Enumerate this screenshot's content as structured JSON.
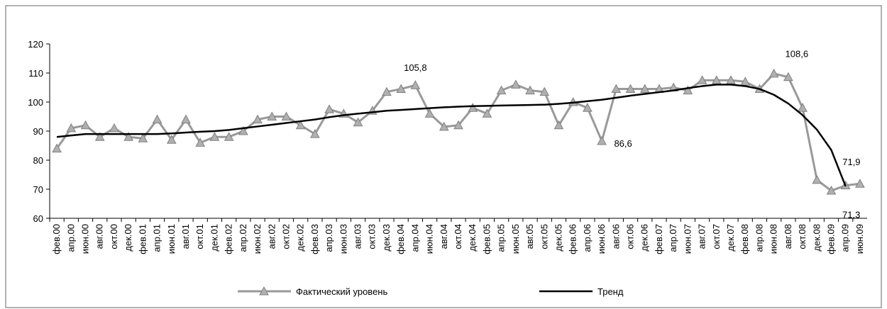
{
  "chart_data": {
    "type": "line",
    "categories": [
      "фев.00",
      "апр.00",
      "июн.00",
      "авг.00",
      "окт.00",
      "дек.00",
      "фев.01",
      "апр.01",
      "июн.01",
      "авг.01",
      "окт.01",
      "дек.01",
      "фев.02",
      "апр.02",
      "июн.02",
      "авг.02",
      "окт.02",
      "дек.02",
      "фев.03",
      "апр.03",
      "июн.03",
      "авг.03",
      "окт.03",
      "дек.03",
      "фев.04",
      "апр.04",
      "июн.04",
      "авг.04",
      "окт.04",
      "дек.04",
      "фев.05",
      "апр.05",
      "июн.05",
      "авг.05",
      "окт.05",
      "дек.05",
      "фев.06",
      "апр.06",
      "июн.06",
      "авг.06",
      "окт.06",
      "дек.06",
      "фев.07",
      "апр.07",
      "июн.07",
      "авг.07",
      "окт.07",
      "дек.07",
      "фев.08",
      "апр.08",
      "июн.08",
      "авг.08",
      "окт.08",
      "дек.08",
      "фев.09",
      "апр.09",
      "июн.09"
    ],
    "series": [
      {
        "name": "Фактический уровень",
        "color": "#999999",
        "marker": "triangle",
        "values": [
          84,
          91,
          92,
          88,
          91,
          88,
          87.5,
          94,
          87,
          94,
          86,
          88,
          88,
          90,
          94,
          95,
          95,
          92,
          89,
          97.5,
          96,
          93,
          97,
          103.5,
          104.5,
          105.8,
          96,
          91.5,
          92,
          98,
          96,
          104,
          106,
          104,
          103.5,
          92,
          100,
          98,
          86.6,
          104.5,
          104.5,
          104.5,
          104.5,
          105,
          104,
          107.5,
          107.5,
          107.5,
          107,
          104.5,
          109.8,
          108.6,
          98,
          73.2,
          69.5,
          71.3,
          71.9
        ],
        "value_labels": [
          null,
          null,
          null,
          null,
          null,
          null,
          null,
          null,
          null,
          null,
          null,
          null,
          null,
          null,
          null,
          null,
          null,
          null,
          null,
          null,
          null,
          null,
          null,
          null,
          null,
          "105,8",
          null,
          null,
          null,
          null,
          null,
          null,
          null,
          null,
          null,
          null,
          null,
          null,
          "86,6",
          null,
          null,
          null,
          null,
          null,
          null,
          null,
          null,
          null,
          null,
          null,
          null,
          "108,6",
          null,
          null,
          null,
          "71,3",
          "71,9"
        ]
      },
      {
        "name": "Тренд",
        "color": "#000000",
        "values": [
          88,
          88.5,
          89,
          89,
          89,
          89,
          89,
          89,
          89.2,
          89.5,
          89.8,
          90,
          90.4,
          91,
          91.6,
          92.2,
          92.8,
          93.4,
          94,
          94.8,
          95.5,
          96,
          96.5,
          97,
          97.3,
          97.6,
          97.9,
          98.2,
          98.4,
          98.6,
          98.7,
          98.8,
          98.9,
          99,
          99.1,
          99.4,
          99.8,
          100.3,
          100.8,
          101.5,
          102.2,
          102.8,
          103.4,
          104,
          104.8,
          105.5,
          106,
          106,
          105.5,
          104.5,
          102.5,
          99.5,
          95.5,
          90.5,
          83.5,
          71,
          null
        ]
      }
    ],
    "ylim": [
      60,
      120
    ],
    "yticks": [
      60,
      70,
      80,
      90,
      100,
      110,
      120
    ],
    "grid": false,
    "legend": "bottom"
  }
}
